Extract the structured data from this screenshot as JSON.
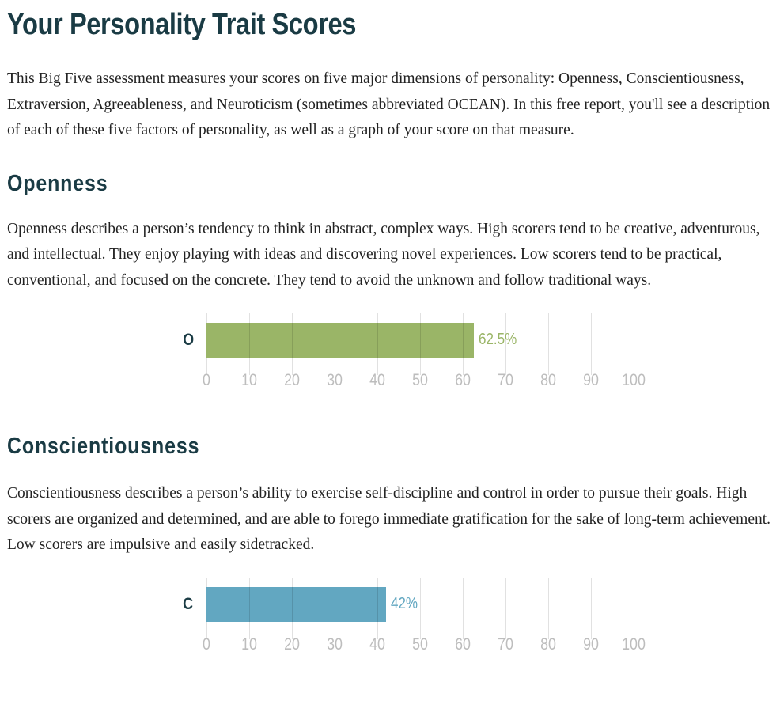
{
  "page": {
    "title": "Your Personality Trait Scores",
    "intro": "This Big Five assessment measures your scores on five major dimensions of personality: Openness, Conscientiousness, Extraversion, Agreeableness, and Neuroticism (sometimes abbreviated OCEAN). In this free report, you'll see a description of each of these five factors of personality, as well as a graph of your score on that measure."
  },
  "sections": {
    "openness": {
      "heading": "Openness",
      "description": "Openness describes a person’s tendency to think in abstract, complex ways. High scorers tend to be creative, adventurous, and intellectual. They enjoy playing with ideas and discovering novel experiences. Low scorers tend to be practical, conventional, and focused on the concrete. They tend to avoid the unknown and follow traditional ways."
    },
    "conscientiousness": {
      "heading": "Conscientiousness",
      "description": "Conscientiousness describes a person’s ability to exercise self-discipline and control in order to pursue their goals. High scorers are organized and determined, and are able to forego immediate gratification for the sake of long-term achievement. Low scorers are impulsive and easily sidetracked."
    }
  },
  "chart_data": [
    {
      "type": "bar",
      "orientation": "horizontal",
      "categories": [
        "O"
      ],
      "values": [
        62.5
      ],
      "value_label": "62.5%",
      "color": "#9ab567",
      "xlim": [
        0,
        100
      ],
      "xticks": [
        "0",
        "10",
        "20",
        "30",
        "40",
        "50",
        "60",
        "70",
        "80",
        "90",
        "100"
      ],
      "grid": true
    },
    {
      "type": "bar",
      "orientation": "horizontal",
      "categories": [
        "C"
      ],
      "values": [
        42
      ],
      "value_label": "42%",
      "color": "#62a7c1",
      "xlim": [
        0,
        100
      ],
      "xticks": [
        "0",
        "10",
        "20",
        "30",
        "40",
        "50",
        "60",
        "70",
        "80",
        "90",
        "100"
      ],
      "grid": true
    }
  ]
}
